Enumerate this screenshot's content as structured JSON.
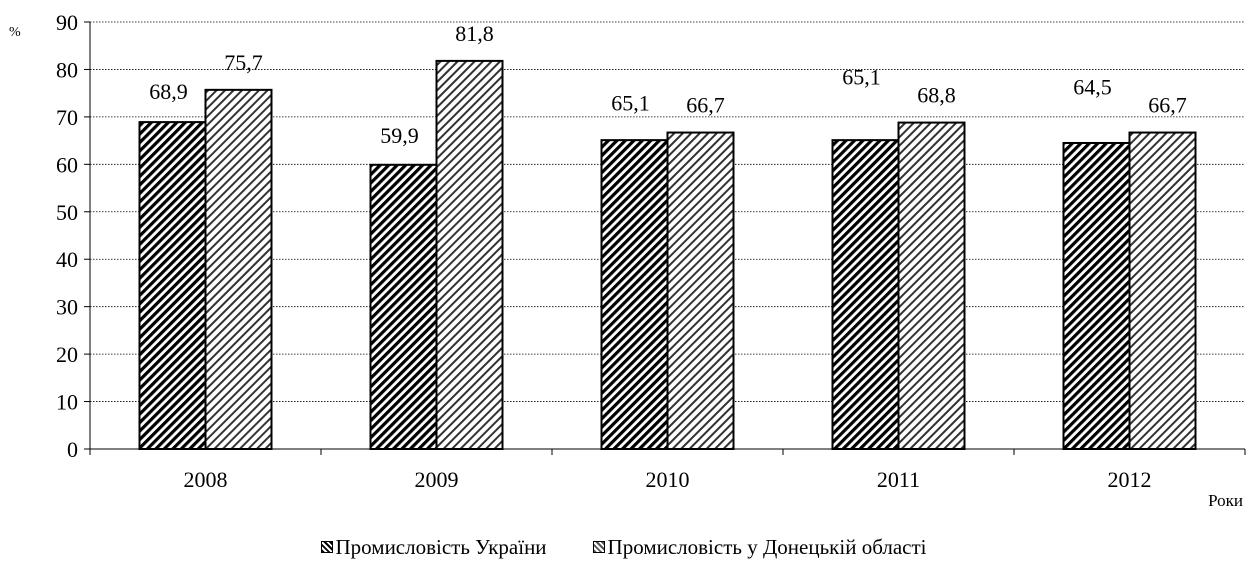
{
  "chart_data": {
    "type": "bar",
    "title": "",
    "categories": [
      "2008",
      "2009",
      "2010",
      "2011",
      "2012"
    ],
    "series": [
      {
        "name": "Промисловість України",
        "values": [
          68.9,
          59.9,
          65.1,
          65.1,
          64.5
        ],
        "labels": [
          "68,9",
          "59,9",
          "65,1",
          "65,1",
          "64,5"
        ],
        "pattern": "dense-diagonal-hatch"
      },
      {
        "name": "Промисловість у Донецькій області",
        "values": [
          75.7,
          81.8,
          66.7,
          68.8,
          66.7
        ],
        "labels": [
          "75,7",
          "81,8",
          "66,7",
          "68,8",
          "66,7"
        ],
        "pattern": "light-diagonal-hatch"
      }
    ],
    "ylabel": "%",
    "xlabel": "Роки",
    "ylim": [
      0,
      90
    ],
    "yticks": [
      0,
      10,
      20,
      30,
      40,
      50,
      60,
      70,
      80,
      90
    ],
    "grid": true,
    "legend_position": "bottom"
  }
}
